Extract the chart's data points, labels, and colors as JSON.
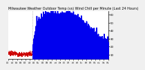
{
  "title": "Milwaukee Weather Outdoor Temp (vs) Wind Chill per Minute (Last 24 Hours)",
  "bg_color": "#f0f0f0",
  "plot_bg": "#ffffff",
  "ylim": [
    5,
    65
  ],
  "ytick_vals": [
    10,
    20,
    30,
    40,
    50,
    60
  ],
  "ytick_labels": [
    "10",
    "20",
    "30",
    "40",
    "50",
    "60"
  ],
  "n_points": 1440,
  "vline_x": 350,
  "temp_color": "#0000ee",
  "chill_color": "#cc0000",
  "title_fontsize": 3.5,
  "temp_noise_scale": 4.0,
  "chill_noise_scale": 1.5
}
